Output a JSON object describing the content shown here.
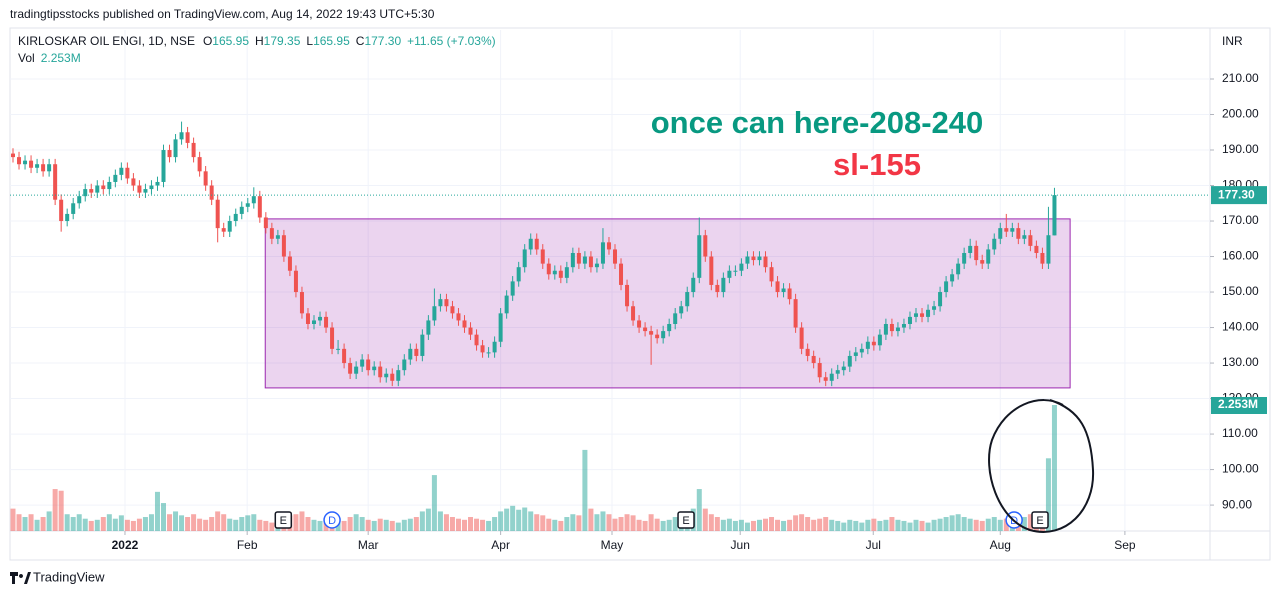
{
  "header": {
    "published": "tradingtipsstocks published on TradingView.com, Aug 14, 2022 19:43 UTC+5:30",
    "symbol": "KIRLOSKAR OIL ENGI, 1D, NSE",
    "ohlc": [
      [
        "O",
        "165.95"
      ],
      [
        "H",
        "179.35"
      ],
      [
        "L",
        "165.95"
      ],
      [
        "C",
        "177.30"
      ]
    ],
    "change": "+11.65 (+7.03%)",
    "volume_name": "Vol",
    "volume_value": "2.253M"
  },
  "footer": {
    "brand": "TradingView"
  },
  "chart_data": {
    "type": "candlestick",
    "currency": "INR",
    "up_color": "#26a69a",
    "down_color": "#ef5350",
    "ylim": [
      82.7,
      223.8
    ],
    "yticks": [
      {
        "value": 90,
        "label": "90.00"
      },
      {
        "value": 100,
        "label": "100.00"
      },
      {
        "value": 110,
        "label": "110.00"
      },
      {
        "value": 120,
        "label": "120.00"
      },
      {
        "value": 130,
        "label": "130.00"
      },
      {
        "value": 140,
        "label": "140.00"
      },
      {
        "value": 150,
        "label": "150.00"
      },
      {
        "value": 160,
        "label": "160.00"
      },
      {
        "value": 170,
        "label": "170.00"
      },
      {
        "value": 180,
        "label": "180.00"
      },
      {
        "value": 190,
        "label": "190.00"
      },
      {
        "value": 200,
        "label": "200.00"
      },
      {
        "value": 210,
        "label": "210.00"
      }
    ],
    "xticks": [
      {
        "value": 18.6,
        "label": "2022"
      },
      {
        "value": 38.9,
        "label": "Feb"
      },
      {
        "value": 59,
        "label": "Mar"
      },
      {
        "value": 81,
        "label": "Apr"
      },
      {
        "value": 99.5,
        "label": "May"
      },
      {
        "value": 120.8,
        "label": "Jun"
      },
      {
        "value": 142.9,
        "label": "Jul"
      },
      {
        "value": 164,
        "label": "Aug"
      },
      {
        "value": 184.7,
        "label": "Sep"
      }
    ],
    "grid": true,
    "candles": [
      [
        189,
        190.5,
        186.5,
        188
      ],
      [
        188,
        189.5,
        184.5,
        186
      ],
      [
        186,
        188.5,
        184.5,
        187
      ],
      [
        187,
        188.5,
        183.5,
        185
      ],
      [
        185,
        187.5,
        183.5,
        186
      ],
      [
        186,
        187.5,
        182.5,
        184
      ],
      [
        184,
        187.5,
        182.5,
        186
      ],
      [
        186,
        187.5,
        174.5,
        176
      ],
      [
        176,
        177.5,
        167,
        170
      ],
      [
        170,
        173.5,
        168.5,
        172
      ],
      [
        172,
        176.5,
        170.5,
        175
      ],
      [
        175,
        178.5,
        173.5,
        177
      ],
      [
        177,
        180.5,
        175.5,
        179
      ],
      [
        179,
        180.5,
        176.5,
        178
      ],
      [
        178,
        181.5,
        176.5,
        180
      ],
      [
        180,
        181.5,
        177.5,
        179
      ],
      [
        179,
        182.5,
        177.5,
        181
      ],
      [
        181,
        184.5,
        179.5,
        183
      ],
      [
        183,
        186.5,
        181.5,
        185
      ],
      [
        185,
        186.5,
        180.5,
        182
      ],
      [
        182,
        183.5,
        178.5,
        180
      ],
      [
        180,
        181.5,
        176.5,
        178
      ],
      [
        178,
        180.5,
        176.5,
        179
      ],
      [
        179,
        181.5,
        177.5,
        180
      ],
      [
        180,
        182.5,
        178.5,
        181
      ],
      [
        181,
        191.5,
        179.5,
        190
      ],
      [
        190,
        191.5,
        186.5,
        188
      ],
      [
        188,
        194.5,
        186.5,
        193
      ],
      [
        193,
        198,
        191.5,
        195
      ],
      [
        195,
        196.5,
        190.5,
        192
      ],
      [
        192,
        193.5,
        186.5,
        188
      ],
      [
        188,
        189.5,
        182.5,
        184
      ],
      [
        184,
        185.5,
        178.5,
        180
      ],
      [
        180,
        181.5,
        174.5,
        176
      ],
      [
        176,
        177.5,
        164,
        168
      ],
      [
        168,
        169.5,
        165.5,
        167
      ],
      [
        167,
        171.5,
        165.5,
        170
      ],
      [
        170,
        173.5,
        168.5,
        172
      ],
      [
        172,
        175.5,
        170.5,
        174
      ],
      [
        174,
        176.5,
        172.5,
        175
      ],
      [
        175,
        179.5,
        173.5,
        177
      ],
      [
        177,
        178.5,
        169.5,
        171
      ],
      [
        171,
        172.5,
        166.5,
        168
      ],
      [
        168,
        169.5,
        163.5,
        165
      ],
      [
        165,
        167.5,
        163.5,
        166
      ],
      [
        166,
        167.5,
        158.5,
        160
      ],
      [
        160,
        161.5,
        154.5,
        156
      ],
      [
        156,
        157.5,
        148.5,
        150
      ],
      [
        150,
        151.5,
        142.5,
        144
      ],
      [
        144,
        145.5,
        139.5,
        141
      ],
      [
        141,
        143.5,
        139.5,
        142
      ],
      [
        142,
        144.5,
        140.5,
        143
      ],
      [
        143,
        144.5,
        138.5,
        140
      ],
      [
        140,
        141.5,
        132.5,
        134
      ],
      [
        134,
        136.5,
        132.5,
        134
      ],
      [
        134,
        135.5,
        128.5,
        130
      ],
      [
        130,
        131.5,
        125.5,
        127
      ],
      [
        127,
        130.5,
        125.5,
        129
      ],
      [
        129,
        132.5,
        127.5,
        131
      ],
      [
        131,
        132.5,
        126.5,
        128
      ],
      [
        128,
        130.5,
        126.5,
        129
      ],
      [
        129,
        130.5,
        124.5,
        126
      ],
      [
        126,
        128.5,
        124.5,
        127
      ],
      [
        127,
        128.5,
        123.5,
        125
      ],
      [
        125,
        129.5,
        123.5,
        128
      ],
      [
        128,
        132.5,
        126.5,
        131
      ],
      [
        131,
        135.5,
        129.5,
        134
      ],
      [
        134,
        135.5,
        130.5,
        132
      ],
      [
        132,
        139.5,
        130.5,
        138
      ],
      [
        138,
        143.5,
        136.5,
        142
      ],
      [
        142,
        151,
        140.5,
        146
      ],
      [
        146,
        149.5,
        144.5,
        148
      ],
      [
        148,
        149.5,
        144.5,
        146
      ],
      [
        146,
        147.5,
        142.5,
        144
      ],
      [
        144,
        145.5,
        140.5,
        142
      ],
      [
        142,
        143.5,
        138.5,
        140
      ],
      [
        140,
        141.5,
        136.5,
        138
      ],
      [
        138,
        139.5,
        133.5,
        135
      ],
      [
        135,
        136.5,
        131.5,
        133
      ],
      [
        133,
        134.5,
        131.5,
        133
      ],
      [
        133,
        137.5,
        131.5,
        136
      ],
      [
        136,
        145.5,
        134.5,
        144
      ],
      [
        144,
        150.5,
        142.5,
        149
      ],
      [
        149,
        154.5,
        147.5,
        153
      ],
      [
        153,
        158.5,
        151.5,
        157
      ],
      [
        157,
        163.5,
        155.5,
        162
      ],
      [
        162,
        166.5,
        160.5,
        165
      ],
      [
        165,
        166.5,
        160.5,
        162
      ],
      [
        162,
        163.5,
        156.5,
        158
      ],
      [
        158,
        159.5,
        153.5,
        155
      ],
      [
        155,
        157.5,
        153.5,
        156
      ],
      [
        156,
        157.5,
        152.5,
        154
      ],
      [
        154,
        158.5,
        152.5,
        157
      ],
      [
        157,
        162.5,
        155.5,
        161
      ],
      [
        161,
        162.5,
        156.5,
        158
      ],
      [
        158,
        161.5,
        156.5,
        160
      ],
      [
        160,
        161.5,
        155.5,
        157
      ],
      [
        157,
        159.5,
        155.5,
        158
      ],
      [
        158,
        168,
        156.5,
        164
      ],
      [
        164,
        165.5,
        160.5,
        162
      ],
      [
        162,
        163.5,
        156.5,
        158
      ],
      [
        158,
        159.5,
        150.5,
        152
      ],
      [
        152,
        153.5,
        144.5,
        146
      ],
      [
        146,
        147.5,
        140.5,
        142
      ],
      [
        142,
        143.5,
        138.5,
        140
      ],
      [
        140,
        141.5,
        137.5,
        139
      ],
      [
        139,
        140.5,
        129.5,
        138
      ],
      [
        138,
        139.5,
        135.5,
        137
      ],
      [
        137,
        140.5,
        135.5,
        139
      ],
      [
        139,
        142.5,
        137.5,
        141
      ],
      [
        141,
        145.5,
        139.5,
        144
      ],
      [
        144,
        147.5,
        142.5,
        146
      ],
      [
        146,
        151.5,
        144.5,
        150
      ],
      [
        150,
        155.5,
        148.5,
        154
      ],
      [
        154,
        171,
        152.5,
        166
      ],
      [
        166,
        167.5,
        158.5,
        160
      ],
      [
        160,
        161.5,
        150.5,
        152
      ],
      [
        152,
        153.5,
        148.5,
        150
      ],
      [
        150,
        155.5,
        148.5,
        154
      ],
      [
        154,
        157.5,
        152.5,
        156
      ],
      [
        156,
        157.5,
        154.5,
        156
      ],
      [
        156,
        159.5,
        154.5,
        158
      ],
      [
        158,
        161.5,
        156.5,
        160
      ],
      [
        160,
        161.5,
        157.5,
        159
      ],
      [
        159,
        161.5,
        157.5,
        160
      ],
      [
        160,
        161.5,
        155.5,
        157
      ],
      [
        157,
        158.5,
        151.5,
        153
      ],
      [
        153,
        154.5,
        148.5,
        150
      ],
      [
        150,
        152.5,
        148.5,
        151
      ],
      [
        151,
        152.5,
        146.5,
        148
      ],
      [
        148,
        149.5,
        138.5,
        140
      ],
      [
        140,
        141.5,
        132.5,
        134
      ],
      [
        134,
        135.5,
        130.5,
        132
      ],
      [
        132,
        133.5,
        128.5,
        130
      ],
      [
        130,
        131.5,
        124.5,
        126
      ],
      [
        126,
        127.5,
        123.5,
        125
      ],
      [
        125,
        128.5,
        123.5,
        127
      ],
      [
        127,
        129.5,
        125.5,
        128
      ],
      [
        128,
        130.5,
        126.5,
        129
      ],
      [
        129,
        133.5,
        127.5,
        132
      ],
      [
        132,
        134.5,
        130.5,
        133
      ],
      [
        133,
        135.5,
        131.5,
        134
      ],
      [
        134,
        137.5,
        132.5,
        136
      ],
      [
        136,
        137.5,
        133.5,
        135
      ],
      [
        135,
        139.5,
        133.5,
        138
      ],
      [
        138,
        142.5,
        136.5,
        141
      ],
      [
        141,
        142.5,
        137.5,
        139
      ],
      [
        139,
        141.5,
        137.5,
        140
      ],
      [
        140,
        142.5,
        138.5,
        141
      ],
      [
        141,
        144.5,
        139.5,
        143
      ],
      [
        143,
        145.5,
        141.5,
        144
      ],
      [
        144,
        145.5,
        141.5,
        143
      ],
      [
        143,
        146.5,
        141.5,
        145
      ],
      [
        145,
        147.5,
        143.5,
        146
      ],
      [
        146,
        151.5,
        144.5,
        150
      ],
      [
        150,
        154.5,
        148.5,
        153
      ],
      [
        153,
        156.5,
        151.5,
        155
      ],
      [
        155,
        159.5,
        153.5,
        158
      ],
      [
        158,
        162.5,
        156.5,
        161
      ],
      [
        161,
        165,
        159.5,
        163
      ],
      [
        163,
        164.5,
        157.5,
        159
      ],
      [
        159,
        160.5,
        156.5,
        158
      ],
      [
        158,
        163.5,
        156.5,
        162
      ],
      [
        162,
        166.5,
        160.5,
        165
      ],
      [
        165,
        169.5,
        163.5,
        168
      ],
      [
        168,
        172,
        165.5,
        167
      ],
      [
        167,
        169.5,
        165.5,
        168
      ],
      [
        168,
        169.5,
        163.5,
        165
      ],
      [
        165,
        167.5,
        163.5,
        166
      ],
      [
        166,
        167.5,
        161.5,
        163
      ],
      [
        163,
        164.5,
        159.5,
        161
      ],
      [
        161,
        162.5,
        156.5,
        158
      ],
      [
        158,
        174,
        156.5,
        166
      ],
      [
        165.95,
        179.35,
        165.95,
        177.3
      ]
    ],
    "volumes": [
      0.4,
      0.3,
      0.25,
      0.3,
      0.2,
      0.25,
      0.35,
      0.75,
      0.72,
      0.3,
      0.25,
      0.3,
      0.22,
      0.18,
      0.2,
      0.25,
      0.3,
      0.22,
      0.28,
      0.2,
      0.18,
      0.22,
      0.25,
      0.3,
      0.7,
      0.5,
      0.3,
      0.35,
      0.28,
      0.25,
      0.3,
      0.22,
      0.2,
      0.25,
      0.35,
      0.3,
      0.22,
      0.2,
      0.25,
      0.28,
      0.3,
      0.2,
      0.18,
      0.15,
      0.2,
      0.3,
      0.28,
      0.3,
      0.35,
      0.25,
      0.2,
      0.18,
      0.22,
      0.28,
      0.2,
      0.18,
      0.25,
      0.3,
      0.25,
      0.2,
      0.18,
      0.22,
      0.2,
      0.18,
      0.15,
      0.2,
      0.22,
      0.25,
      0.35,
      0.4,
      1.0,
      0.35,
      0.3,
      0.25,
      0.22,
      0.2,
      0.25,
      0.22,
      0.2,
      0.18,
      0.25,
      0.35,
      0.4,
      0.45,
      0.38,
      0.42,
      0.35,
      0.3,
      0.28,
      0.22,
      0.2,
      0.18,
      0.25,
      0.3,
      0.28,
      1.45,
      0.4,
      0.3,
      0.35,
      0.3,
      0.22,
      0.25,
      0.3,
      0.28,
      0.2,
      0.18,
      0.3,
      0.22,
      0.18,
      0.2,
      0.25,
      0.3,
      0.35,
      0.4,
      0.75,
      0.4,
      0.3,
      0.25,
      0.2,
      0.22,
      0.18,
      0.2,
      0.15,
      0.18,
      0.2,
      0.22,
      0.25,
      0.2,
      0.18,
      0.2,
      0.28,
      0.3,
      0.25,
      0.2,
      0.22,
      0.25,
      0.2,
      0.18,
      0.15,
      0.2,
      0.18,
      0.15,
      0.2,
      0.22,
      0.18,
      0.2,
      0.25,
      0.2,
      0.18,
      0.15,
      0.2,
      0.18,
      0.15,
      0.2,
      0.22,
      0.25,
      0.28,
      0.3,
      0.25,
      0.22,
      0.2,
      0.18,
      0.22,
      0.25,
      0.2,
      0.22,
      0.2,
      0.18,
      0.25,
      0.3,
      0.28,
      0.22,
      1.3,
      2.253
    ],
    "box": {
      "x": [
        41.9,
        175.6
      ],
      "y": [
        123,
        170.6
      ],
      "color": "#9c27b0"
    },
    "events": [
      {
        "label": "E",
        "x": 44.9
      },
      {
        "label": "D",
        "x": 53
      },
      {
        "label": "E",
        "x": 111.8
      },
      {
        "label": "D",
        "x": 166.3
      },
      {
        "label": "E",
        "x": 170.6
      }
    ],
    "annotations": [
      {
        "text": "once can here-208-240",
        "color": "#089981"
      },
      {
        "text": "sl-155",
        "color": "#f23645"
      }
    ],
    "last_price_label": "177.30",
    "volume_label": "2.253M"
  }
}
